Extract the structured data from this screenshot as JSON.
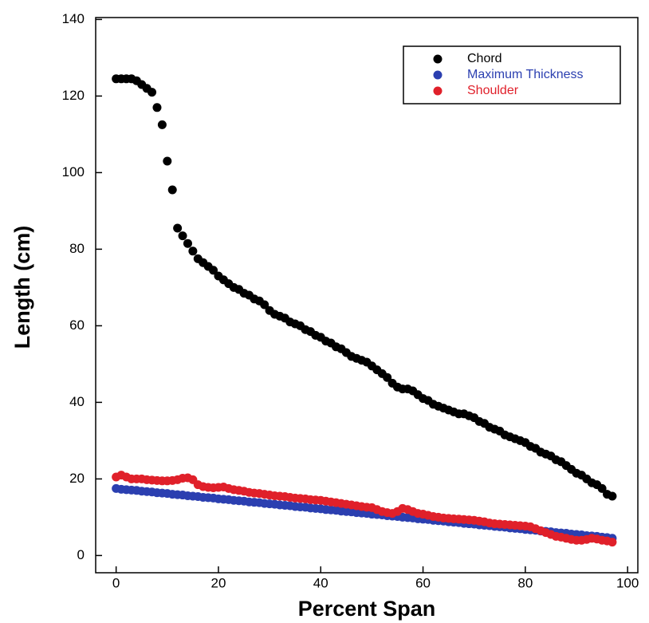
{
  "chart_data": {
    "type": "scatter",
    "x_label": "Percent Span",
    "y_label": "Length (cm)",
    "xlim": [
      -4,
      102
    ],
    "ylim": [
      -4.5,
      140.5
    ],
    "xticks": [
      0,
      20,
      40,
      60,
      80,
      100
    ],
    "yticks": [
      0,
      20,
      40,
      60,
      80,
      100,
      120,
      140
    ],
    "legend": "top-right",
    "x": [
      0,
      1,
      2,
      3,
      4,
      5,
      6,
      7,
      8,
      9,
      10,
      11,
      12,
      13,
      14,
      15,
      16,
      17,
      18,
      19,
      20,
      21,
      22,
      23,
      24,
      25,
      26,
      27,
      28,
      29,
      30,
      31,
      32,
      33,
      34,
      35,
      36,
      37,
      38,
      39,
      40,
      41,
      42,
      43,
      44,
      45,
      46,
      47,
      48,
      49,
      50,
      51,
      52,
      53,
      54,
      55,
      56,
      57,
      58,
      59,
      60,
      61,
      62,
      63,
      64,
      65,
      66,
      67,
      68,
      69,
      70,
      71,
      72,
      73,
      74,
      75,
      76,
      77,
      78,
      79,
      80,
      81,
      82,
      83,
      84,
      85,
      86,
      87,
      88,
      89,
      90,
      91,
      92,
      93,
      94,
      95,
      96,
      97
    ],
    "series": [
      {
        "name": "Chord",
        "color": "#000000",
        "values": [
          124.5,
          124.5,
          124.5,
          124.5,
          124,
          123,
          122,
          121,
          117,
          112.5,
          103,
          95.5,
          85.5,
          83.5,
          81.5,
          79.5,
          77.5,
          76.5,
          75.5,
          74.5,
          73,
          72,
          71,
          70,
          69.5,
          68.5,
          68,
          67,
          66.5,
          65.5,
          64,
          63,
          62.5,
          62,
          61,
          60.5,
          60,
          59,
          58.5,
          57.5,
          57,
          56,
          55.5,
          54.5,
          54,
          53,
          52,
          51.5,
          51,
          50.5,
          49.5,
          48.5,
          47.5,
          46.5,
          45,
          44,
          43.5,
          43.5,
          43,
          42,
          41,
          40.5,
          39.5,
          39,
          38.5,
          38,
          37.5,
          37,
          37,
          36.5,
          36,
          35,
          34.5,
          33.5,
          33,
          32.5,
          31.5,
          31,
          30.5,
          30,
          29.5,
          28.5,
          28,
          27,
          26.5,
          26,
          25,
          24.5,
          23.5,
          22.5,
          21.5,
          21,
          20,
          19,
          18.5,
          17.5,
          16,
          15.5
        ]
      },
      {
        "name": "Maximum Thickness",
        "color": "#2b3fb0",
        "values": [
          17.5,
          17.3,
          17.2,
          17.1,
          17,
          16.8,
          16.7,
          16.6,
          16.4,
          16.3,
          16.2,
          16,
          15.9,
          15.8,
          15.6,
          15.5,
          15.4,
          15.2,
          15.1,
          15,
          14.8,
          14.7,
          14.6,
          14.4,
          14.3,
          14.2,
          14,
          13.9,
          13.8,
          13.6,
          13.5,
          13.4,
          13.2,
          13.1,
          13,
          12.8,
          12.7,
          12.6,
          12.4,
          12.3,
          12.2,
          12,
          11.9,
          11.8,
          11.6,
          11.5,
          11.4,
          11.2,
          11.1,
          11,
          10.8,
          10.7,
          10.6,
          10.4,
          10.3,
          10.2,
          10,
          9.9,
          9.8,
          9.6,
          9.5,
          9.4,
          9.2,
          9.1,
          9,
          8.8,
          8.7,
          8.6,
          8.4,
          8.3,
          8.2,
          8,
          7.9,
          7.8,
          7.6,
          7.5,
          7.4,
          7.2,
          7.1,
          7,
          6.8,
          6.7,
          6.6,
          6.4,
          6.3,
          6.2,
          6,
          5.9,
          5.8,
          5.6,
          5.5,
          5.4,
          5.2,
          5.1,
          5,
          4.8,
          4.7,
          4.5
        ]
      },
      {
        "name": "Shoulder",
        "color": "#e0202a",
        "values": [
          20.5,
          21,
          20.5,
          20,
          20,
          20,
          19.8,
          19.7,
          19.6,
          19.5,
          19.5,
          19.6,
          19.8,
          20.2,
          20.3,
          19.8,
          18.5,
          18,
          17.8,
          17.7,
          17.8,
          17.9,
          17.5,
          17.2,
          17,
          16.8,
          16.5,
          16.3,
          16.2,
          16,
          15.8,
          15.6,
          15.5,
          15.4,
          15.2,
          15,
          14.9,
          14.8,
          14.6,
          14.5,
          14.4,
          14.2,
          14,
          13.8,
          13.6,
          13.4,
          13.2,
          13,
          12.8,
          12.6,
          12.5,
          12,
          11.5,
          11.2,
          11,
          11.5,
          12.3,
          12,
          11.5,
          11,
          10.8,
          10.5,
          10.2,
          10,
          9.8,
          9.7,
          9.6,
          9.5,
          9.4,
          9.3,
          9.2,
          9,
          8.8,
          8.5,
          8.3,
          8.2,
          8.1,
          8,
          7.9,
          7.8,
          7.7,
          7.5,
          7,
          6.5,
          6,
          5.5,
          5,
          4.8,
          4.5,
          4.2,
          4,
          4,
          4.2,
          4.5,
          4.3,
          4,
          3.8,
          3.5
        ]
      }
    ]
  }
}
